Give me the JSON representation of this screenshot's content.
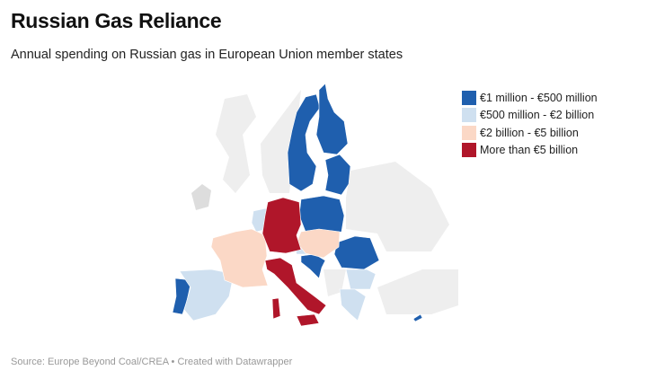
{
  "title": "Russian Gas Reliance",
  "subtitle": "Annual spending on Russian gas in European Union member states",
  "legend": [
    {
      "label": "€1 million - €500 million",
      "color": "#1f5fae"
    },
    {
      "label": "€500 million - €2 billion",
      "color": "#cfe0f0"
    },
    {
      "label": "€2 billion - €5 billion",
      "color": "#fbd8c6"
    },
    {
      "label": "More than €5 billion",
      "color": "#b0162a"
    }
  ],
  "non_eu_color": "#eeeeee",
  "countries": {
    "Sweden": 0,
    "Finland": 0,
    "Baltics": 0,
    "Poland": 0,
    "Portugal": 0,
    "Croatia-Slovenia": 0,
    "Romania": 0,
    "Cyprus": 0,
    "Spain": 1,
    "Austria": 1,
    "Benelux": 1,
    "Bulgaria": 1,
    "Greece": 1,
    "France": 2,
    "Central Europe": 2,
    "Germany": 3,
    "Italy": 3,
    "Sardinia": 3,
    "Sicily": 3
  },
  "source": "Source: Europe Beyond Coal/CREA • Created with Datawrapper"
}
